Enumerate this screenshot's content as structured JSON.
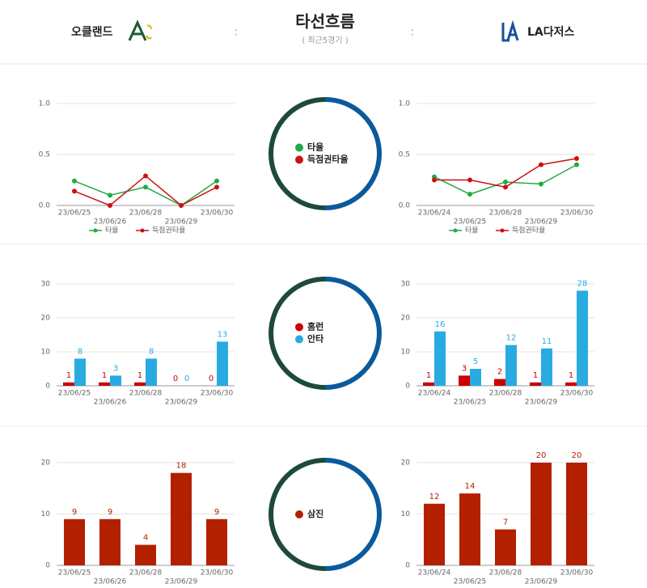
{
  "header": {
    "team_left": "오클랜드",
    "title": "타선흐름",
    "subtitle": "( 최근5경기 )",
    "team_right": "LA다저스",
    "separator": ":"
  },
  "chart_data": [
    {
      "type": "line",
      "categories": [
        "23/06/25",
        "23/06/26",
        "23/06/28",
        "23/06/29",
        "23/06/30"
      ],
      "series": [
        {
          "name": "타율",
          "color": "#22aa44",
          "values": [
            0.24,
            0.1,
            0.18,
            0.0,
            0.24
          ]
        },
        {
          "name": "득점권타율",
          "color": "#cc1111",
          "values": [
            0.14,
            0.0,
            0.29,
            0.0,
            0.18
          ]
        }
      ],
      "ylim": [
        0,
        1.0
      ],
      "yticks": [
        {
          "value": 0,
          "label": "0.0"
        },
        {
          "value": 0.5,
          "label": "0.5"
        },
        {
          "value": 1,
          "label": "1.0"
        }
      ],
      "grid": true,
      "legend": "bottom"
    },
    {
      "type": "line",
      "categories": [
        "23/06/24",
        "23/06/25",
        "23/06/28",
        "23/06/29",
        "23/06/30"
      ],
      "series": [
        {
          "name": "타율",
          "color": "#22aa44",
          "values": [
            0.28,
            0.11,
            0.23,
            0.21,
            0.4
          ]
        },
        {
          "name": "득점권타율",
          "color": "#cc1111",
          "values": [
            0.25,
            0.25,
            0.18,
            0.4,
            0.46
          ]
        }
      ],
      "ylim": [
        0,
        1.0
      ],
      "yticks": [
        {
          "value": 0,
          "label": "0.0"
        },
        {
          "value": 0.5,
          "label": "0.5"
        },
        {
          "value": 1,
          "label": "1.0"
        }
      ],
      "grid": true,
      "legend": "bottom"
    },
    {
      "type": "bar",
      "categories": [
        "23/06/25",
        "23/06/26",
        "23/06/28",
        "23/06/29",
        "23/06/30"
      ],
      "series": [
        {
          "name": "홈런",
          "color": "#cc0000",
          "values": [
            1,
            1,
            1,
            0,
            0
          ]
        },
        {
          "name": "안타",
          "color": "#29abe2",
          "values": [
            8,
            3,
            8,
            0,
            13
          ]
        }
      ],
      "ylim": [
        0,
        30
      ],
      "yticks": [
        0,
        10,
        20,
        30
      ],
      "grid": true
    },
    {
      "type": "bar",
      "categories": [
        "23/06/24",
        "23/06/25",
        "23/06/28",
        "23/06/29",
        "23/06/30"
      ],
      "series": [
        {
          "color": "#cc0000",
          "values": [
            1,
            3,
            2,
            1,
            1
          ]
        },
        {
          "color": "#29abe2",
          "values": [
            16,
            5,
            12,
            11,
            28
          ]
        }
      ],
      "ylim": [
        0,
        30
      ],
      "yticks": [
        0,
        10,
        20,
        30
      ],
      "grid": true
    },
    {
      "type": "bar",
      "categories": [
        "23/06/25",
        "23/06/26",
        "23/06/28",
        "23/06/29",
        "23/06/30"
      ],
      "series": [
        {
          "name": "삼진",
          "color": "#b22000",
          "values": [
            9,
            9,
            4,
            18,
            9
          ]
        }
      ],
      "ylim": [
        0,
        20
      ],
      "yticks": [
        0,
        10,
        20
      ],
      "grid": true
    },
    {
      "type": "bar",
      "categories": [
        "23/06/24",
        "23/06/25",
        "23/06/28",
        "23/06/29",
        "23/06/30"
      ],
      "series": [
        {
          "color": "#b22000",
          "values": [
            12,
            14,
            7,
            20,
            20
          ]
        }
      ],
      "ylim": [
        0,
        20
      ],
      "yticks": [
        0,
        10,
        20
      ],
      "grid": true
    }
  ]
}
